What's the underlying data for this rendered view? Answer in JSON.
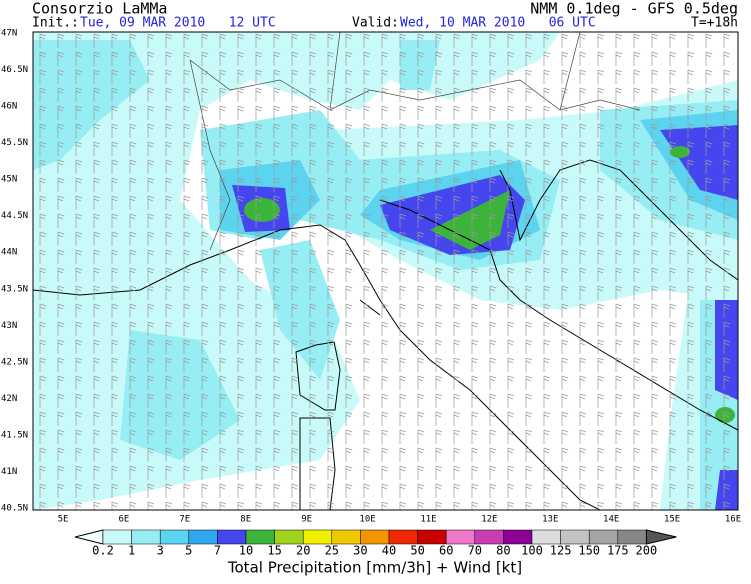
{
  "header": {
    "title": "Consorzio LaMMa",
    "model": "NMM 0.1deg - GFS 0.5deg",
    "init_label": "Init.:",
    "init_time": "Tue, 09 MAR 2010   12 UTC",
    "valid_label": "Valid:",
    "valid_time": "Wed, 10 MAR 2010   06 UTC",
    "lead": "T=+18h"
  },
  "map": {
    "lat_labels": [
      "47N",
      "46.5N",
      "46N",
      "45.5N",
      "45N",
      "44.5N",
      "44N",
      "43.5N",
      "43N",
      "42.5N",
      "42N",
      "41.5N",
      "41N",
      "40.5N"
    ],
    "lon_labels": [
      "5E",
      "6E",
      "7E",
      "8E",
      "9E",
      "10E",
      "11E",
      "12E",
      "13E",
      "14E",
      "15E",
      "16E"
    ]
  },
  "legend": {
    "title": "Total Precipitation [mm/3h] + Wind [kt]",
    "levels": [
      0.2,
      1,
      3,
      5,
      7,
      10,
      15,
      20,
      25,
      30,
      40,
      50,
      60,
      70,
      80,
      100,
      125,
      150,
      175,
      200
    ],
    "colors": [
      "#f4ffff",
      "#c8fafa",
      "#96eef4",
      "#5cd4f0",
      "#30a8f0",
      "#4646ee",
      "#3cb43c",
      "#a0d21e",
      "#f0f000",
      "#f0c800",
      "#f09600",
      "#f02800",
      "#c80000",
      "#f078c8",
      "#c83cb4",
      "#8c0096",
      "#dcdcdc",
      "#c3c3c3",
      "#a5a5a5",
      "#878787",
      "#555555"
    ]
  }
}
